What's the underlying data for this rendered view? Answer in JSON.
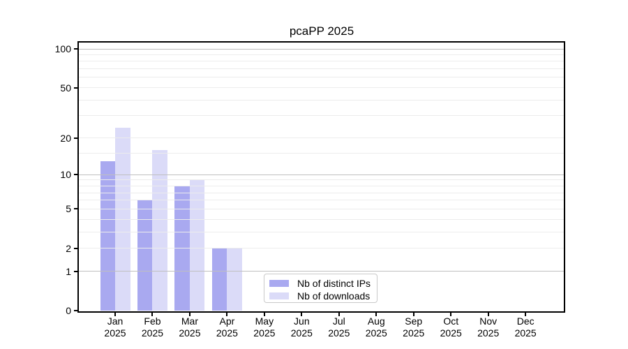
{
  "chart_data": {
    "type": "bar",
    "title": "pcaPP 2025",
    "categories": [
      "Jan",
      "Feb",
      "Mar",
      "Apr",
      "May",
      "Jun",
      "Jul",
      "Aug",
      "Sep",
      "Oct",
      "Nov",
      "Dec"
    ],
    "year_label": "2025",
    "series": [
      {
        "name": "Nb of distinct IPs",
        "color": "#a9a9f0",
        "values": [
          13,
          6,
          8,
          2,
          0,
          0,
          0,
          0,
          0,
          0,
          0,
          0
        ]
      },
      {
        "name": "Nb of downloads",
        "color": "#dbdbf8",
        "values": [
          24,
          16,
          9,
          2,
          0,
          0,
          0,
          0,
          0,
          0,
          0,
          0
        ]
      }
    ],
    "y_axis": {
      "scale": "log10(value+1)",
      "tick_values": [
        0,
        1,
        2,
        5,
        10,
        20,
        50,
        100
      ],
      "major_gridlines": [
        1,
        10,
        100
      ],
      "minor_gridlines": [
        2,
        3,
        4,
        5,
        6,
        7,
        8,
        9,
        15,
        20,
        30,
        40,
        50,
        60,
        70,
        80,
        90
      ],
      "ylim": [
        0,
        113
      ]
    },
    "legend": {
      "position": "inside-bottom-center",
      "entries": [
        "Nb of distinct IPs",
        "Nb of downloads"
      ]
    },
    "colors": {
      "distinct_ips_bar": "#a9a9f0",
      "downloads_bar": "#dbdbf8",
      "major_grid": "#bfbfbf",
      "minor_grid": "#ececec",
      "axis": "#000000",
      "background": "#ffffff"
    }
  }
}
